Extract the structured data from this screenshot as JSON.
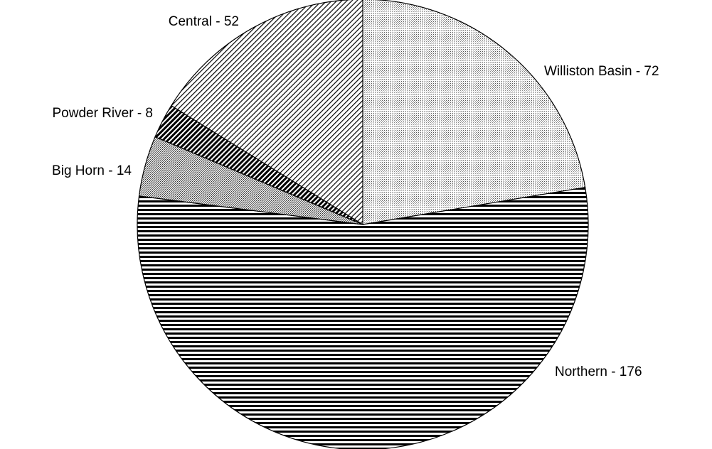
{
  "chart_data": {
    "type": "pie",
    "values": [
      72,
      176,
      14,
      8,
      52
    ],
    "value_labels": [
      "Williston Basin - 72",
      "Northern - 176",
      "Big Horn - 14",
      "Powder River - 8",
      "Central - 52"
    ]
  }
}
